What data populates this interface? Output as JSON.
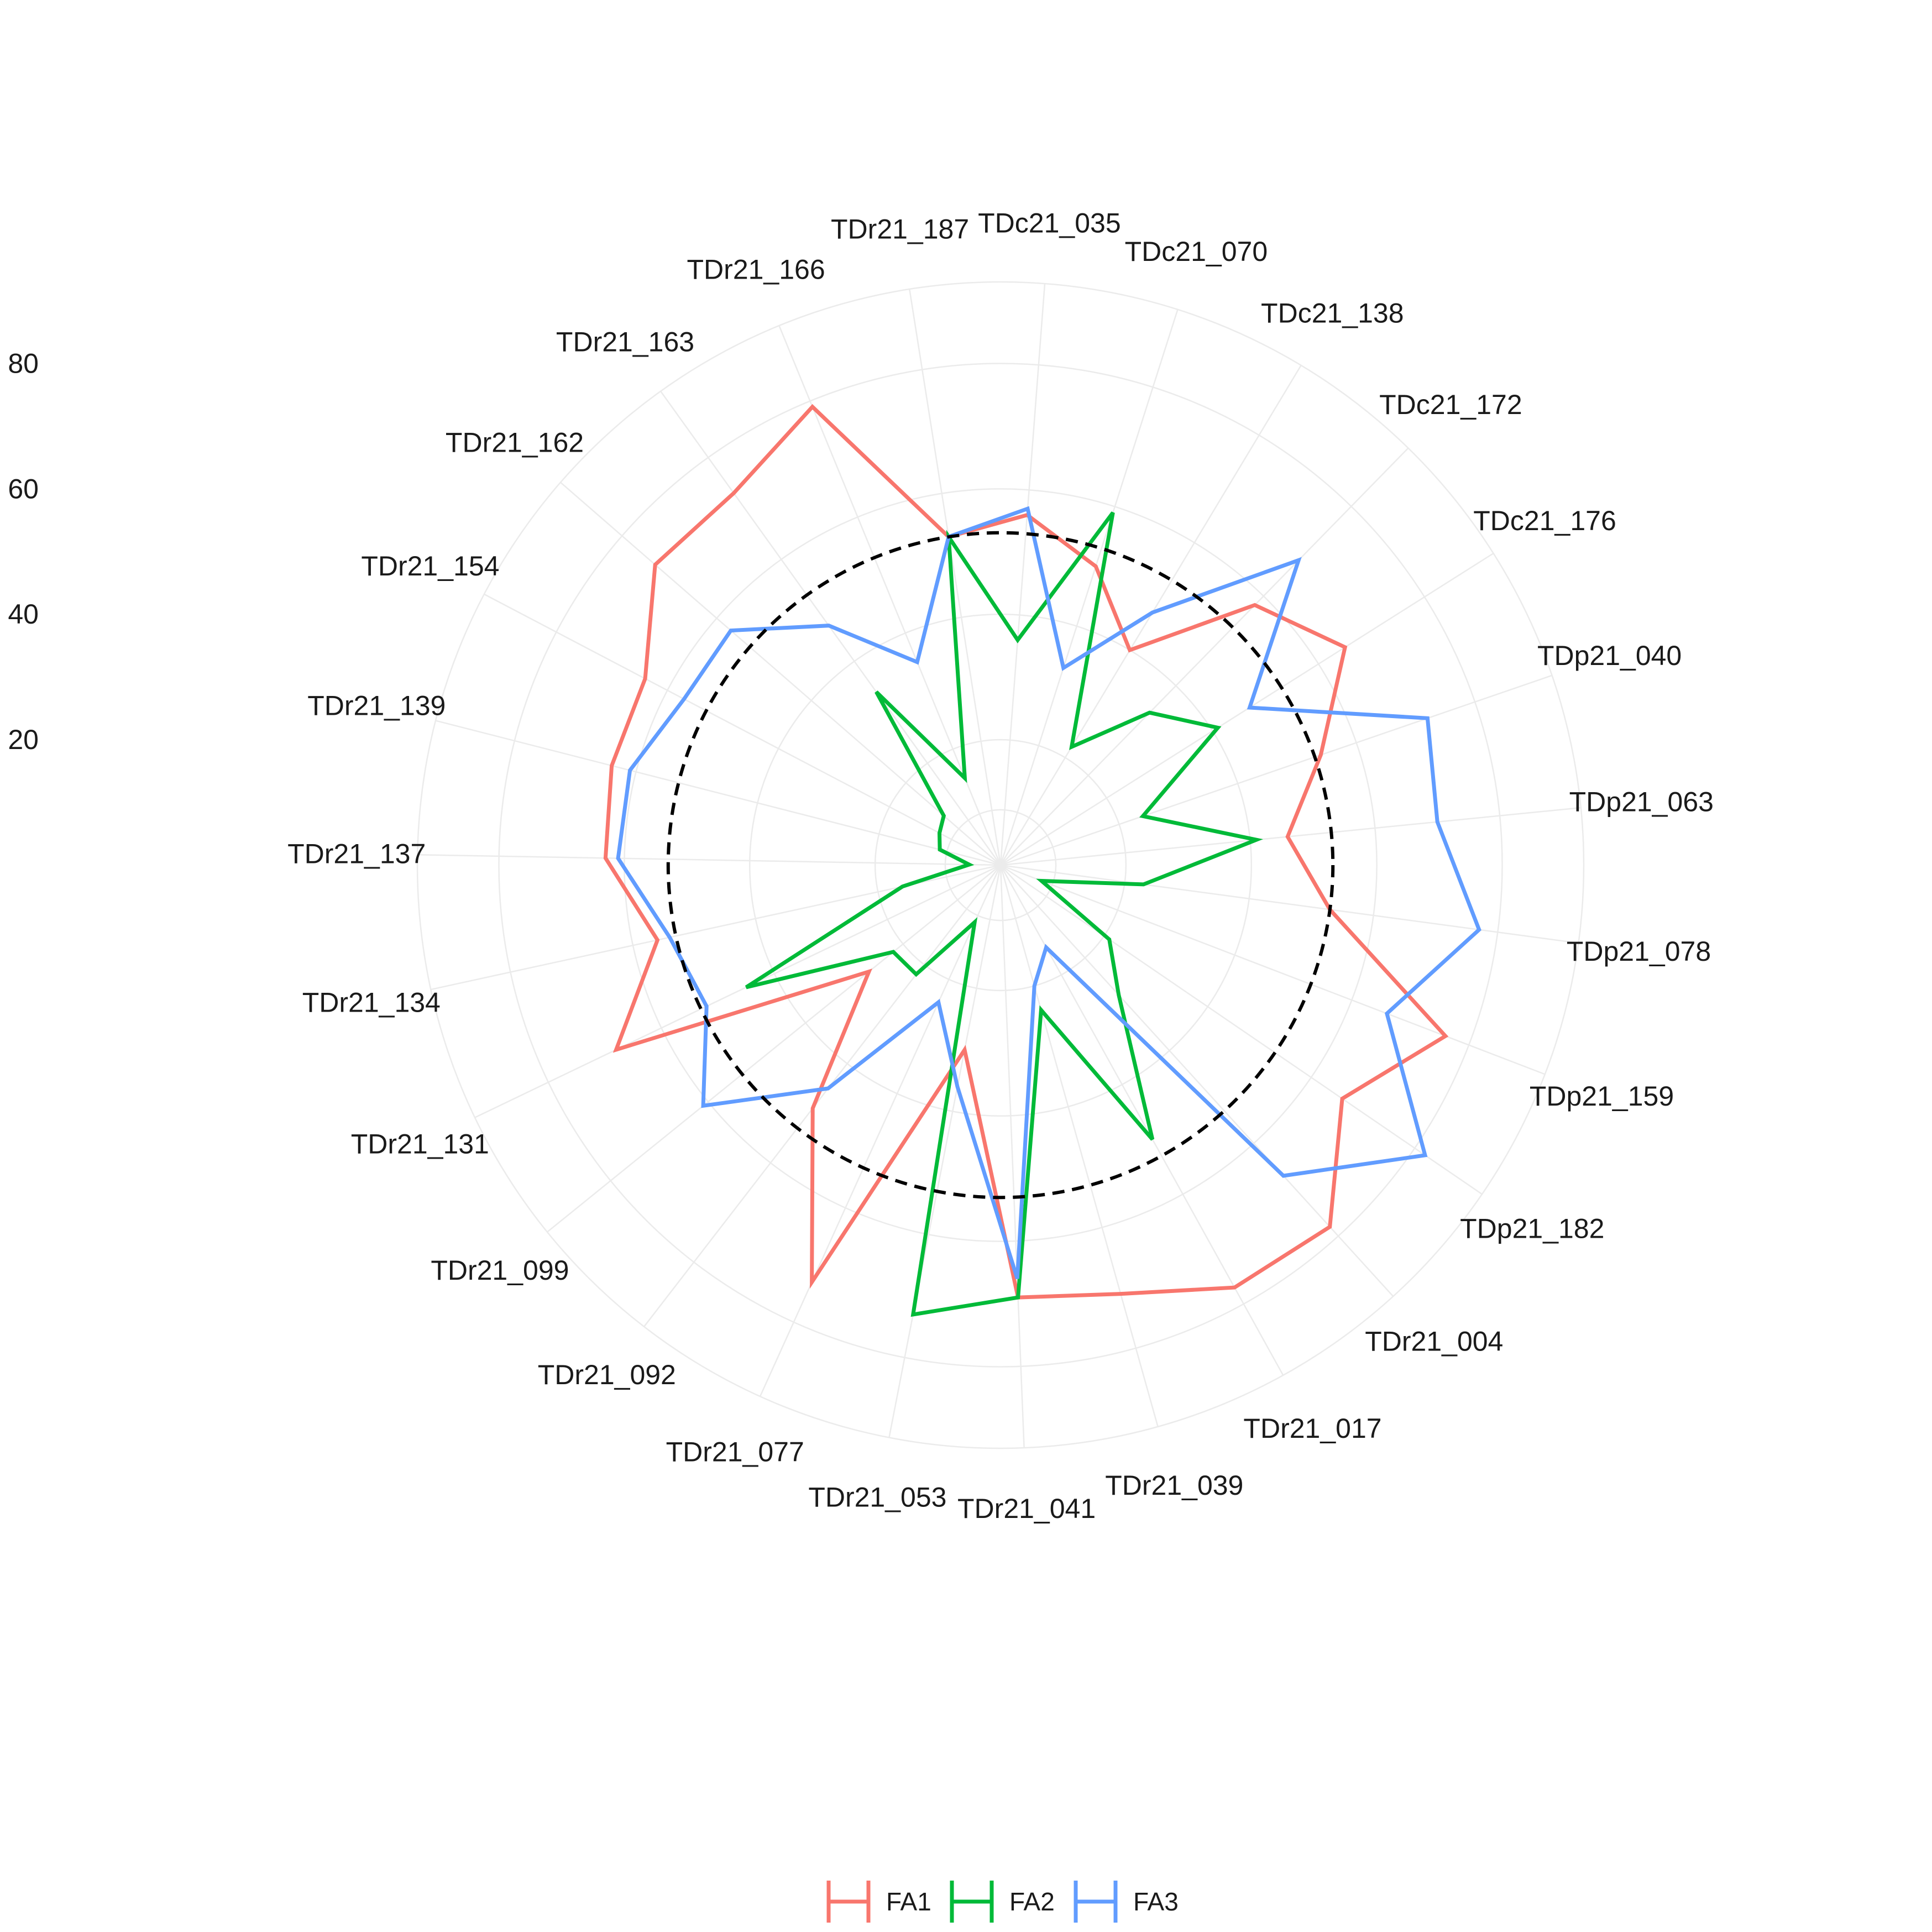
{
  "chart_data": {
    "type": "radar",
    "title": "",
    "categories": [
      "TDc21_035",
      "TDc21_070",
      "TDc21_138",
      "TDc21_172",
      "TDc21_176",
      "TDp21_040",
      "TDp21_063",
      "TDp21_078",
      "TDp21_159",
      "TDp21_182",
      "TDr21_004",
      "TDr21_017",
      "TDr21_039",
      "TDr21_041",
      "TDr21_053",
      "TDr21_077",
      "TDr21_092",
      "TDr21_099",
      "TDr21_131",
      "TDr21_134",
      "TDr21_137",
      "TDr21_139",
      "TDr21_154",
      "TDr21_162",
      "TDr21_163",
      "TDr21_166",
      "TDr21_187"
    ],
    "radial_ticks": [
      "20",
      "40",
      "60",
      "80"
    ],
    "radial_tick_values": [
      20,
      40,
      60,
      80
    ],
    "radial_range": [
      0,
      93
    ],
    "reference_circle": 53,
    "series": [
      {
        "name": "FA1",
        "color": "#F8766D",
        "values": [
          56,
          50,
          40,
          58,
          65,
          54,
          46,
          53,
          76,
          66,
          78,
          77,
          71,
          69,
          30,
          73,
          49,
          27,
          68,
          56,
          63,
          64,
          64,
          73,
          73,
          79,
          53
        ]
      },
      {
        "name": "FA2",
        "color": "#00BA38",
        "values": [
          36,
          59,
          22,
          34,
          41,
          24,
          41,
          23,
          7,
          21,
          28,
          50,
          24,
          69,
          73,
          10,
          22,
          22,
          45,
          16,
          5,
          10,
          11,
          12,
          34,
          15,
          53
        ]
      },
      {
        "name": "FA3",
        "color": "#619CFF",
        "values": [
          57,
          33,
          47,
          68,
          47,
          72,
          70,
          77,
          66,
          82,
          67,
          15,
          20,
          66,
          36,
          24,
          45,
          61,
          52,
          54,
          61,
          61,
          57,
          57,
          47,
          35,
          53
        ]
      }
    ],
    "legend": {
      "position": "bottom",
      "entries": [
        "FA1",
        "FA2",
        "FA3"
      ]
    },
    "grid": true
  }
}
